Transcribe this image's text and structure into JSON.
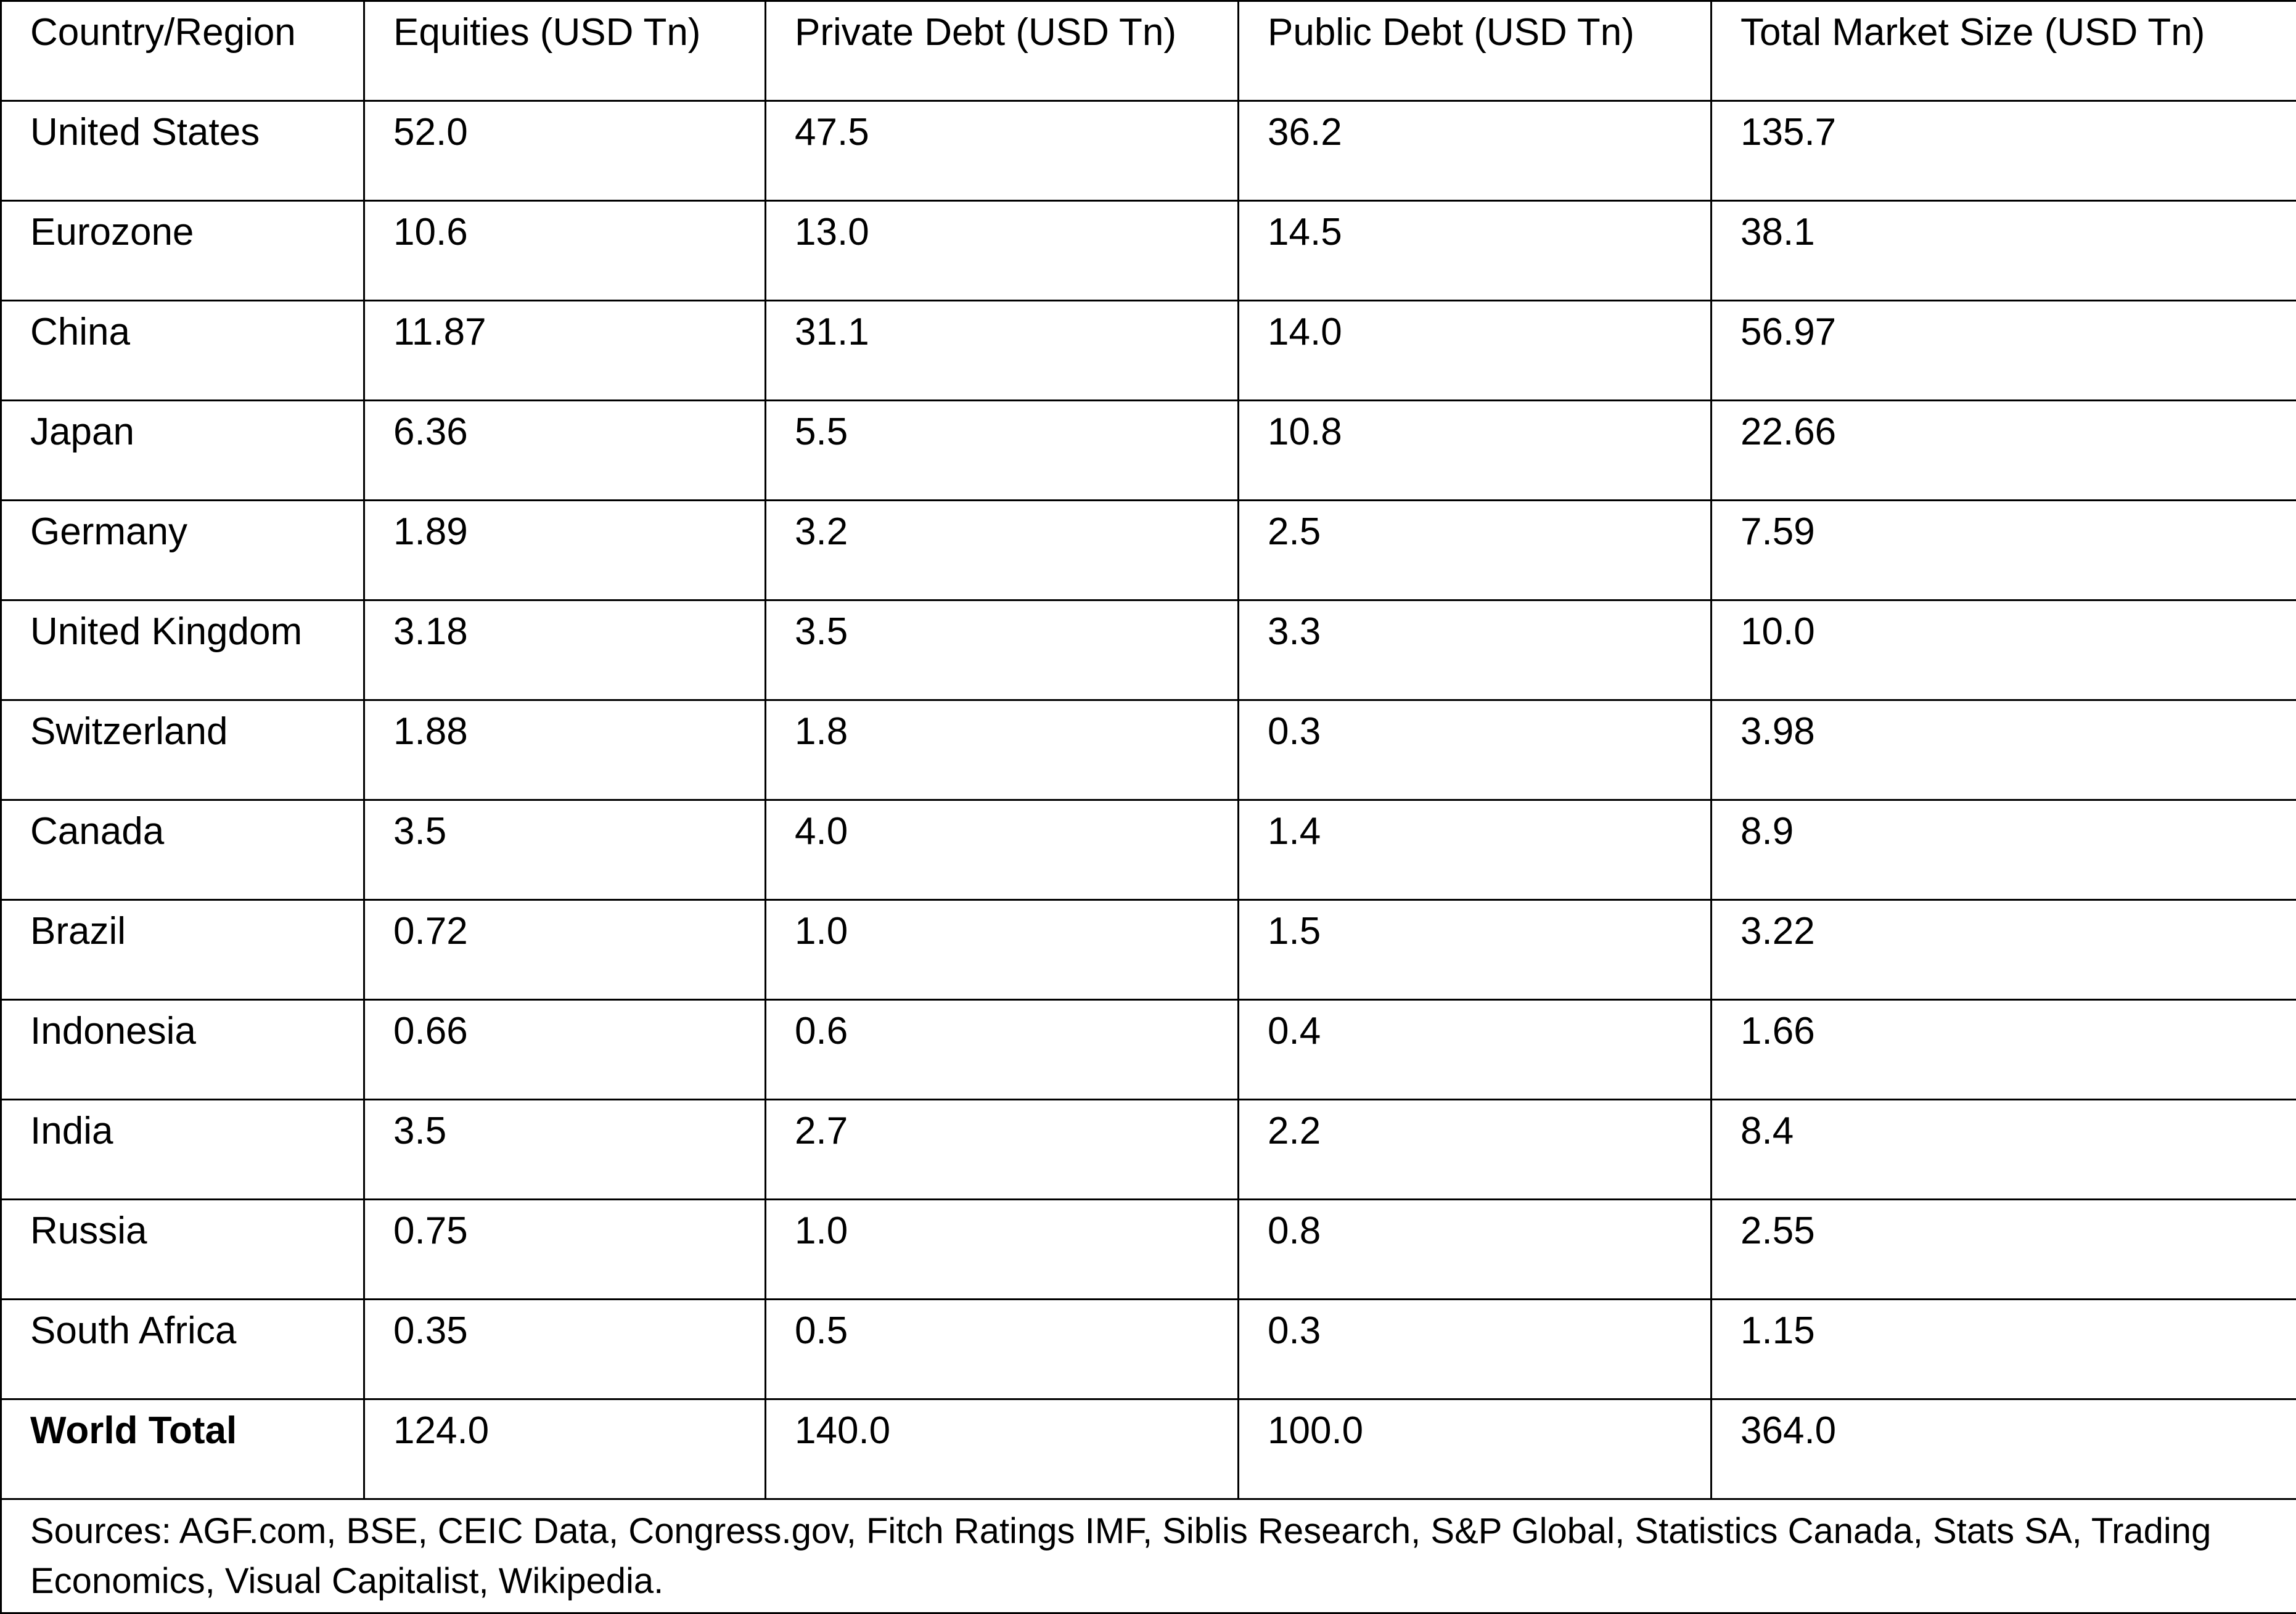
{
  "table": {
    "header": [
      "Country/Region",
      "Equities (USD Tn)",
      "Private Debt (USD Tn)",
      "Public Debt (USD Tn)",
      "Total Market Size (USD Tn)"
    ],
    "rows": [
      [
        "United States",
        "52.0",
        "47.5",
        "36.2",
        "135.7"
      ],
      [
        "Eurozone",
        "10.6",
        "13.0",
        "14.5",
        "38.1"
      ],
      [
        "China",
        "11.87",
        "31.1",
        "14.0",
        "56.97"
      ],
      [
        "Japan",
        "6.36",
        "5.5",
        "10.8",
        "22.66"
      ],
      [
        "Germany",
        "1.89",
        "3.2",
        "2.5",
        "7.59"
      ],
      [
        "United Kingdom",
        "3.18",
        "3.5",
        "3.3",
        "10.0"
      ],
      [
        "Switzerland",
        "1.88",
        "1.8",
        "0.3",
        "3.98"
      ],
      [
        "Canada",
        "3.5",
        "4.0",
        "1.4",
        "8.9"
      ],
      [
        "Brazil",
        "0.72",
        "1.0",
        "1.5",
        "3.22"
      ],
      [
        "Indonesia",
        "0.66",
        "0.6",
        "0.4",
        "1.66"
      ],
      [
        "India",
        "3.5",
        "2.7",
        "2.2",
        "8.4"
      ],
      [
        "Russia",
        "0.75",
        "1.0",
        "0.8",
        "2.55"
      ],
      [
        "South Africa",
        "0.35",
        "0.5",
        "0.3",
        "1.15"
      ],
      [
        "World Total",
        "124.0",
        "140.0",
        "100.0",
        "364.0"
      ]
    ],
    "sources": "Sources: AGF.com, BSE, CEIC Data, Congress.gov, Fitch Ratings IMF,  Siblis Research, S&P Global,  Statistics Canada, Stats SA, Trading Economics, Visual Capitalist, Wikipedia."
  }
}
